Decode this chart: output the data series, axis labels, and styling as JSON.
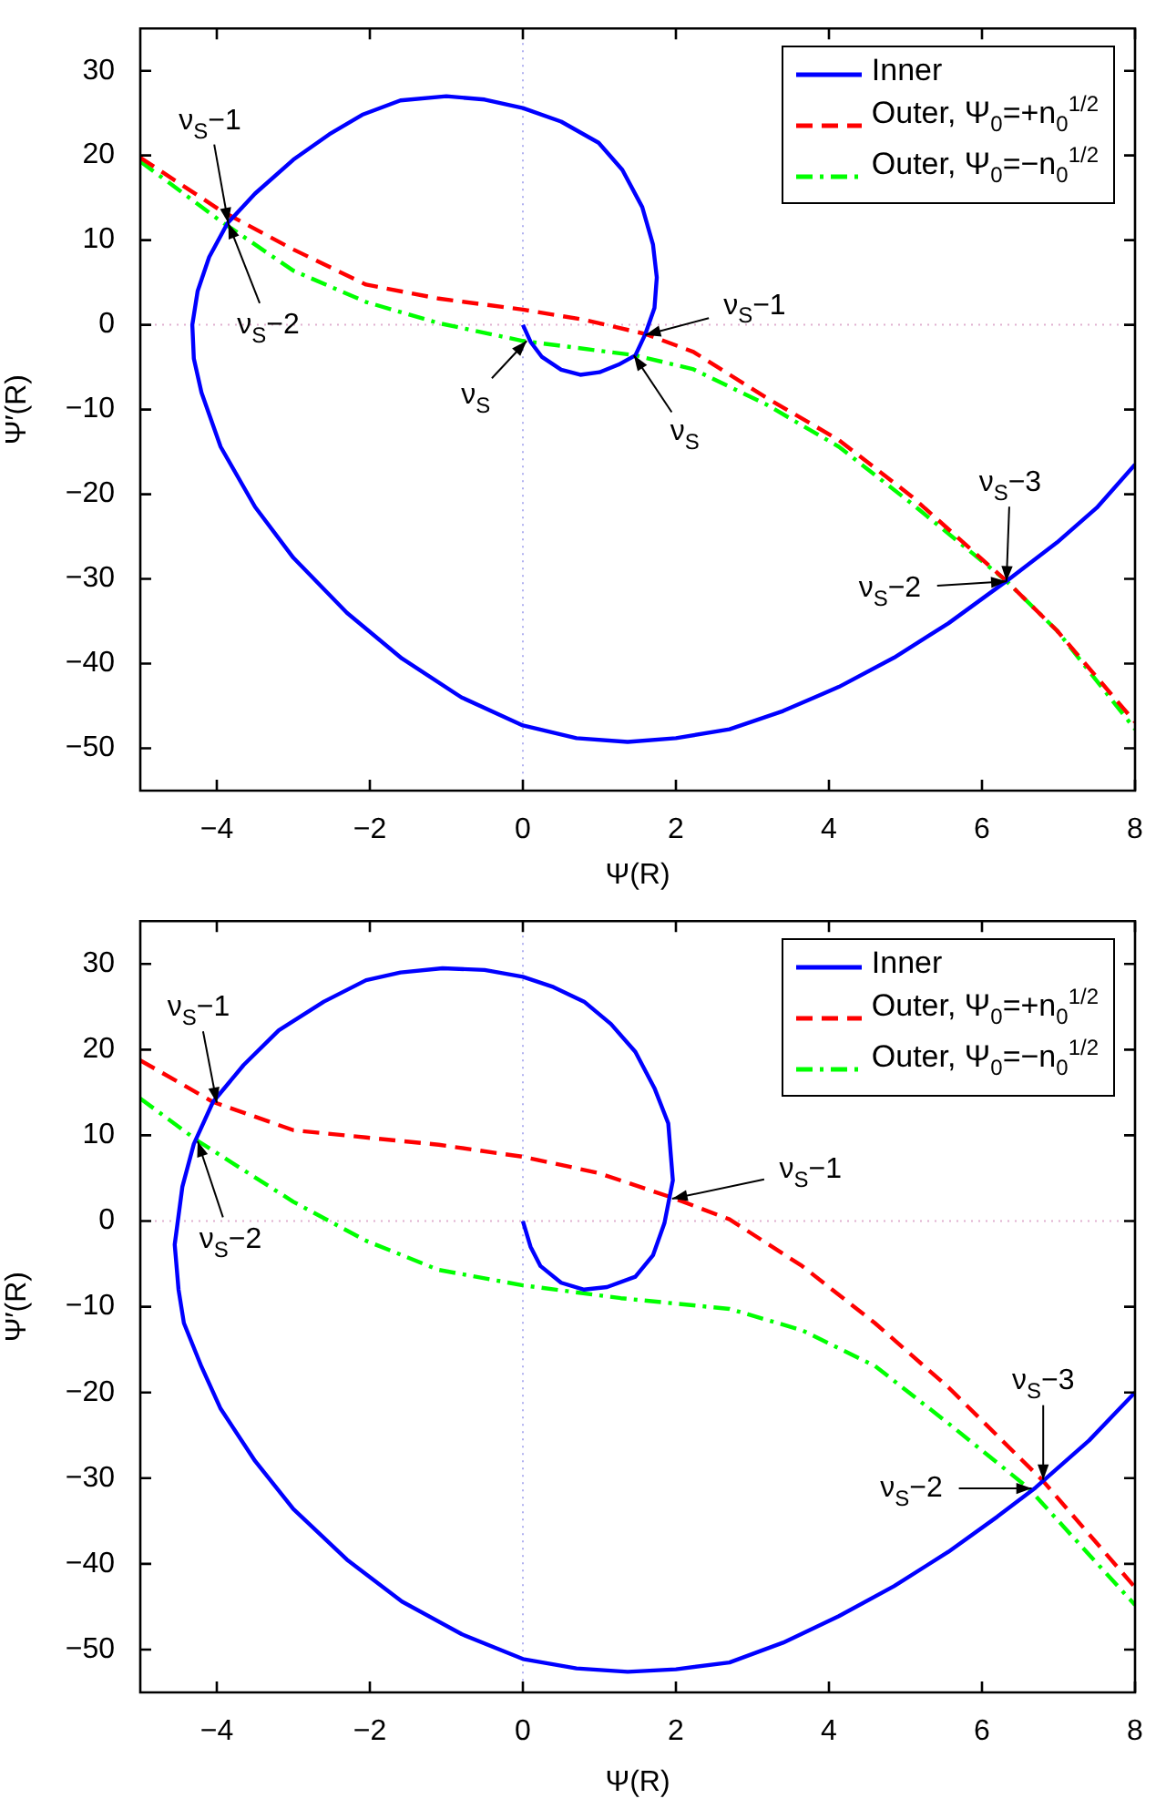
{
  "chart_data": [
    {
      "type": "line",
      "xlabel": "Ψ(R)",
      "ylabel": "Ψ′(R)",
      "xlim": [
        -5,
        8
      ],
      "xticks": [
        -4,
        -2,
        0,
        2,
        4,
        6,
        8
      ],
      "ylim": [
        -55,
        35
      ],
      "yticks": [
        -50,
        -40,
        -30,
        -20,
        -10,
        0,
        10,
        20,
        30
      ],
      "legend": "top right",
      "marker": "none",
      "ref_lines": [
        {
          "axis": "x",
          "value": 0,
          "color": "#b0b0f0",
          "line_style": "dotted"
        },
        {
          "axis": "y",
          "value": 0,
          "color": "#e0b0d0",
          "line_style": "dotted"
        }
      ],
      "annotations": [
        {
          "text": "ν$_{S}$−1",
          "x": -3.85,
          "y": 12
        },
        {
          "text": "ν$_{S}$−2",
          "x": -3.85,
          "y": 12
        },
        {
          "text": "ν$_{S}$",
          "x": 0.05,
          "y": -1.9
        },
        {
          "text": "ν$_{S}$−1",
          "x": 1.6,
          "y": -1.2
        },
        {
          "text": "ν$_{S}$",
          "x": 1.45,
          "y": -3.6
        },
        {
          "text": "ν$_{S}$−3",
          "x": 6.32,
          "y": -30.3
        },
        {
          "text": "ν$_{S}$−2",
          "x": 6.32,
          "y": -30.3
        }
      ],
      "series": [
        {
          "name": "Inner",
          "color": "#0000ff",
          "line_style": "solid",
          "x": [
            0,
            0.1,
            0.25,
            0.5,
            0.75,
            1.0,
            1.25,
            1.47,
            1.6,
            1.72,
            1.75,
            1.7,
            1.56,
            1.3,
            0.99,
            0.5,
            0,
            -0.5,
            -1.0,
            -1.6,
            -2.1,
            -2.53,
            -3.0,
            -3.5,
            -3.86,
            -4.1,
            -4.25,
            -4.32,
            -4.3,
            -4.2,
            -3.95,
            -3.5,
            -3.0,
            -2.3,
            -1.58,
            -0.8,
            0,
            0.7,
            1.37,
            2.0,
            2.7,
            3.4,
            4.13,
            4.85,
            5.56,
            6.32,
            6.98,
            7.5,
            8
          ],
          "values": [
            0,
            -2,
            -3.8,
            -5.3,
            -5.9,
            -5.6,
            -4.7,
            -3.6,
            -1.1,
            2,
            5.6,
            9.5,
            13.9,
            18.3,
            21.5,
            24,
            25.6,
            26.6,
            27,
            26.5,
            24.8,
            22.5,
            19.5,
            15.5,
            12,
            8,
            4,
            0,
            -4,
            -8,
            -14.4,
            -21.5,
            -27.5,
            -34,
            -39.4,
            -44,
            -47.3,
            -48.8,
            -49.25,
            -48.8,
            -47.75,
            -45.6,
            -42.75,
            -39.3,
            -35.25,
            -30.25,
            -25.7,
            -21.6,
            -16.5
          ]
        },
        {
          "name": "Outer, Ψ$_{0}$=+n$_{0}$$^{1/2}$",
          "color": "#ff0000",
          "line_style": "dashed",
          "x": [
            -5,
            -3.95,
            -3.0,
            -2.05,
            -1.1,
            0,
            0.8,
            1.61,
            2.23,
            3.18,
            4.13,
            5.08,
            6.32,
            6.98,
            8
          ],
          "values": [
            19.75,
            13.5,
            8.9,
            4.75,
            3.1,
            1.8,
            0.6,
            -1.1,
            -3.2,
            -8.6,
            -13.6,
            -20.25,
            -30.25,
            -36.1,
            -46.9
          ]
        },
        {
          "name": "Outer, Ψ$_{0}$=−n$_{0}$$^{1/2}$",
          "color": "#00ff00",
          "line_style": "dashdot",
          "x": [
            -5,
            -3.95,
            -3.0,
            -2.05,
            -1.1,
            0,
            1.47,
            2.23,
            3.18,
            4.13,
            5.08,
            6.32,
            6.98,
            8
          ],
          "values": [
            19.3,
            12.25,
            6.4,
            2.7,
            0.2,
            -1.9,
            -3.6,
            -5.25,
            -9.4,
            -14.4,
            -21.1,
            -30.25,
            -36.1,
            -47.75
          ]
        }
      ]
    },
    {
      "type": "line",
      "xlabel": "Ψ(R)",
      "ylabel": "Ψ′(R)",
      "xlim": [
        -5,
        8
      ],
      "xticks": [
        -4,
        -2,
        0,
        2,
        4,
        6,
        8
      ],
      "ylim": [
        -55,
        35
      ],
      "yticks": [
        -50,
        -40,
        -30,
        -20,
        -10,
        0,
        10,
        20,
        30
      ],
      "legend": "top right",
      "marker": "none",
      "ref_lines": [
        {
          "axis": "x",
          "value": 0,
          "color": "#b0b0f0",
          "line_style": "dotted"
        },
        {
          "axis": "y",
          "value": 0,
          "color": "#e0b0d0",
          "line_style": "dotted"
        }
      ],
      "annotations": [
        {
          "text": "ν$_{S}$−1",
          "x": -4.0,
          "y": 13.8
        },
        {
          "text": "ν$_{S}$−2",
          "x": -4.25,
          "y": 9.3
        },
        {
          "text": "ν$_{S}$−1",
          "x": 1.95,
          "y": 2.6
        },
        {
          "text": "ν$_{S}$−3",
          "x": 6.8,
          "y": -30.2
        },
        {
          "text": "ν$_{S}$−2",
          "x": 6.65,
          "y": -31.2
        }
      ],
      "series": [
        {
          "name": "Inner",
          "color": "#0000ff",
          "line_style": "solid",
          "x": [
            0,
            0.1,
            0.23,
            0.5,
            0.8,
            1.1,
            1.47,
            1.7,
            1.85,
            1.96,
            1.9,
            1.72,
            1.47,
            1.15,
            0.8,
            0.4,
            0,
            -0.5,
            -1.05,
            -1.6,
            -2.05,
            -2.6,
            -3.19,
            -3.65,
            -4.05,
            -4.3,
            -4.45,
            -4.55,
            -4.5,
            -4.43,
            -4.2,
            -3.95,
            -3.5,
            -3.0,
            -2.3,
            -1.58,
            -0.8,
            0,
            0.7,
            1.37,
            2.0,
            2.7,
            3.4,
            4.13,
            4.85,
            5.56,
            6.2,
            6.7,
            7.4,
            8
          ],
          "values": [
            0,
            -3,
            -5.25,
            -7.2,
            -8,
            -7.7,
            -6.5,
            -4,
            -0.25,
            4.75,
            11.4,
            15.5,
            19.75,
            23,
            25.6,
            27.3,
            28.5,
            29.3,
            29.5,
            29,
            28.1,
            25.6,
            22.25,
            18.2,
            13.9,
            9,
            4,
            -2.75,
            -8,
            -11.9,
            -17,
            -21.9,
            -28,
            -33.6,
            -39.5,
            -44.4,
            -48.2,
            -51.1,
            -52.2,
            -52.6,
            -52.3,
            -51.5,
            -49.2,
            -46.1,
            -42.6,
            -38.6,
            -34.5,
            -31.1,
            -25.6,
            -20
          ]
        },
        {
          "name": "Outer, Ψ$_{0}$=+n$_{0}$$^{1/2}$",
          "color": "#ff0000",
          "line_style": "dashed",
          "x": [
            -5,
            -4.05,
            -3.0,
            -2.05,
            -1.1,
            0,
            0.99,
            1.96,
            2.7,
            3.65,
            4.6,
            5.56,
            6.79,
            8
          ],
          "values": [
            18.75,
            13.9,
            10.6,
            9.75,
            8.9,
            7.5,
            5.6,
            2.7,
            0.2,
            -5.25,
            -11.9,
            -19.4,
            -30.25,
            -42.75
          ]
        },
        {
          "name": "Outer, Ψ$_{0}$=−n$_{0}$$^{1/2}$",
          "color": "#00ff00",
          "line_style": "dashdot",
          "x": [
            -5,
            -4.24,
            -3.0,
            -2.05,
            -1.1,
            0,
            1.28,
            2.7,
            3.65,
            4.6,
            5.56,
            6.6,
            8
          ],
          "values": [
            14.3,
            9.3,
            2.25,
            -2.3,
            -5.7,
            -7.5,
            -9,
            -10.25,
            -12.75,
            -16.9,
            -23.6,
            -31.1,
            -44.8
          ]
        }
      ]
    }
  ]
}
